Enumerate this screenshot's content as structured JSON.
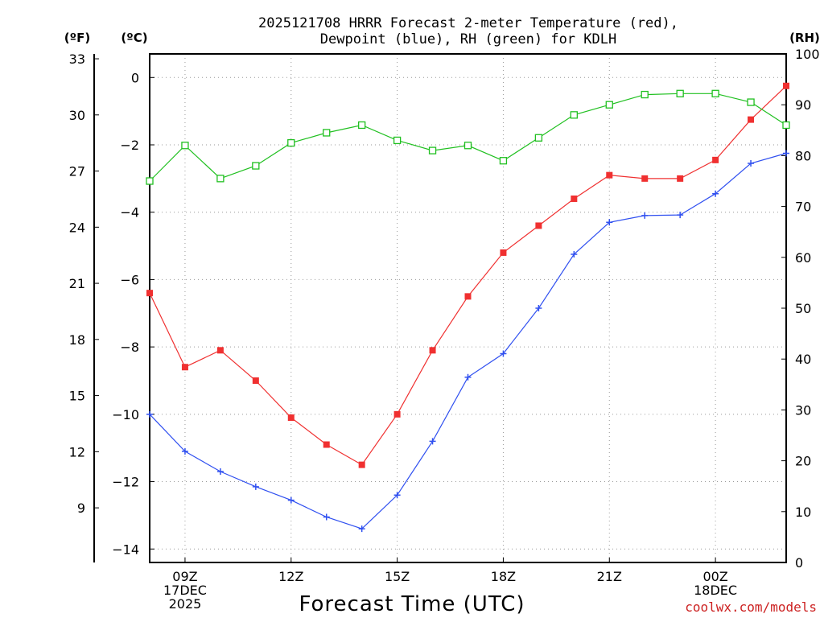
{
  "chart_data": {
    "type": "line",
    "title": [
      "2025121708 HRRR Forecast 2-meter Temperature (red),",
      "Dewpoint (blue), RH (green) for KDLH"
    ],
    "xlabel": "Forecast Time (UTC)",
    "x_hours": [
      8,
      9,
      10,
      11,
      12,
      13,
      14,
      15,
      16,
      17,
      18,
      19,
      20,
      21,
      22,
      23,
      24,
      25,
      26
    ],
    "x_ticks": [
      {
        "hour": 9,
        "lines": [
          "09Z",
          "17DEC",
          "2025"
        ]
      },
      {
        "hour": 12,
        "lines": [
          "12Z"
        ]
      },
      {
        "hour": 15,
        "lines": [
          "15Z"
        ]
      },
      {
        "hour": 18,
        "lines": [
          "18Z"
        ]
      },
      {
        "hour": 21,
        "lines": [
          "21Z"
        ]
      },
      {
        "hour": 24,
        "lines": [
          "00Z",
          "18DEC"
        ]
      }
    ],
    "y_left_celsius": {
      "label": "(ºC)",
      "ylim": [
        -14.4,
        0.7
      ],
      "ticks": [
        "0",
        "−2",
        "−4",
        "−6",
        "−8",
        "−10",
        "−12",
        "−14"
      ],
      "tick_values": [
        0,
        -2,
        -4,
        -6,
        -8,
        -10,
        -12,
        -14
      ]
    },
    "y_left_fahrenheit": {
      "label": "(ºF)",
      "ticks": [
        "33",
        "30",
        "27",
        "24",
        "21",
        "18",
        "15",
        "12",
        "9"
      ],
      "tick_values": [
        33,
        30,
        27,
        24,
        21,
        18,
        15,
        12,
        9
      ]
    },
    "y_right_rh": {
      "label": "(RH)",
      "ylim": [
        0,
        100
      ],
      "ticks": [
        "100",
        "90",
        "80",
        "70",
        "60",
        "50",
        "40",
        "30",
        "20",
        "10",
        "0"
      ],
      "tick_values": [
        100,
        90,
        80,
        70,
        60,
        50,
        40,
        30,
        20,
        10,
        0
      ]
    },
    "series": [
      {
        "name": "Temperature",
        "axis": "celsius",
        "color": "#f03030",
        "marker": "filled-square",
        "values": [
          -6.4,
          -8.6,
          -8.1,
          -9.0,
          -10.1,
          -10.9,
          -11.5,
          -10.0,
          -8.1,
          -6.5,
          -5.2,
          -4.4,
          -3.6,
          -2.9,
          -3.0,
          -3.0,
          -2.45,
          -1.25,
          -0.25
        ]
      },
      {
        "name": "Dewpoint",
        "axis": "celsius",
        "color": "#3050f0",
        "marker": "plus",
        "values": [
          -10.0,
          -11.1,
          -11.7,
          -12.15,
          -12.55,
          -13.05,
          -13.4,
          -12.4,
          -10.8,
          -8.9,
          -8.2,
          -6.85,
          -5.25,
          -4.3,
          -4.1,
          -4.08,
          -3.45,
          -2.55,
          -2.25
        ]
      },
      {
        "name": "RH",
        "axis": "rh",
        "color": "#20c020",
        "marker": "open-square",
        "values": [
          75,
          82,
          75.5,
          78,
          82.5,
          84.5,
          86,
          83,
          81,
          82,
          79,
          83.5,
          88,
          90,
          92,
          92.2,
          92.2,
          90.5,
          86
        ]
      }
    ]
  },
  "credit": "coolwx.com/models"
}
